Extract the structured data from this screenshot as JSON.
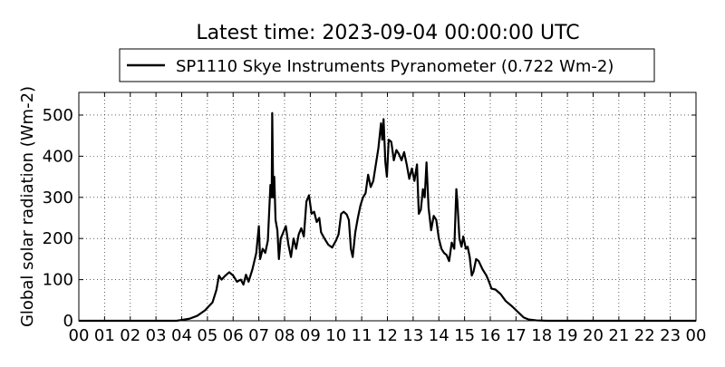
{
  "chart_data": {
    "type": "line",
    "title": "Latest time: 2023-09-04 00:00:00 UTC",
    "ylabel": "Global solar radiation (Wm-2)",
    "xlabel": "",
    "legend": {
      "placement": "top",
      "entries": [
        "SP1110 Skye Instruments Pyranometer (0.722 Wm-2)"
      ]
    },
    "xlim": [
      0,
      24
    ],
    "ylim": [
      0,
      555
    ],
    "grid": true,
    "x_ticks": [
      "00",
      "01",
      "02",
      "03",
      "04",
      "05",
      "06",
      "07",
      "08",
      "09",
      "10",
      "11",
      "12",
      "13",
      "14",
      "15",
      "16",
      "17",
      "18",
      "19",
      "20",
      "21",
      "22",
      "23",
      "00"
    ],
    "y_ticks": [
      0,
      100,
      200,
      300,
      400,
      500
    ],
    "series": [
      {
        "name": "SP1110 Skye Instruments Pyranometer (0.722 Wm-2)",
        "color": "#000000",
        "points": [
          [
            0,
            0
          ],
          [
            3.8,
            0
          ],
          [
            4.0,
            2
          ],
          [
            4.3,
            5
          ],
          [
            4.6,
            12
          ],
          [
            4.9,
            25
          ],
          [
            5.2,
            45
          ],
          [
            5.35,
            75
          ],
          [
            5.45,
            110
          ],
          [
            5.55,
            100
          ],
          [
            5.7,
            110
          ],
          [
            5.85,
            118
          ],
          [
            6.0,
            110
          ],
          [
            6.15,
            95
          ],
          [
            6.3,
            100
          ],
          [
            6.4,
            88
          ],
          [
            6.5,
            112
          ],
          [
            6.6,
            95
          ],
          [
            6.75,
            125
          ],
          [
            6.9,
            165
          ],
          [
            7.0,
            230
          ],
          [
            7.05,
            150
          ],
          [
            7.15,
            175
          ],
          [
            7.25,
            165
          ],
          [
            7.35,
            195
          ],
          [
            7.45,
            330
          ],
          [
            7.5,
            300
          ],
          [
            7.52,
            505
          ],
          [
            7.56,
            300
          ],
          [
            7.6,
            350
          ],
          [
            7.65,
            245
          ],
          [
            7.72,
            220
          ],
          [
            7.78,
            150
          ],
          [
            7.85,
            200
          ],
          [
            7.95,
            215
          ],
          [
            8.05,
            230
          ],
          [
            8.15,
            185
          ],
          [
            8.25,
            155
          ],
          [
            8.35,
            200
          ],
          [
            8.45,
            175
          ],
          [
            8.55,
            210
          ],
          [
            8.65,
            225
          ],
          [
            8.75,
            205
          ],
          [
            8.85,
            290
          ],
          [
            8.95,
            305
          ],
          [
            9.05,
            260
          ],
          [
            9.15,
            265
          ],
          [
            9.25,
            240
          ],
          [
            9.35,
            250
          ],
          [
            9.42,
            215
          ],
          [
            9.55,
            200
          ],
          [
            9.7,
            185
          ],
          [
            9.85,
            178
          ],
          [
            10.0,
            195
          ],
          [
            10.1,
            210
          ],
          [
            10.2,
            260
          ],
          [
            10.3,
            265
          ],
          [
            10.42,
            258
          ],
          [
            10.5,
            245
          ],
          [
            10.58,
            175
          ],
          [
            10.65,
            155
          ],
          [
            10.75,
            215
          ],
          [
            10.85,
            250
          ],
          [
            10.95,
            280
          ],
          [
            11.05,
            300
          ],
          [
            11.15,
            310
          ],
          [
            11.25,
            355
          ],
          [
            11.35,
            325
          ],
          [
            11.45,
            340
          ],
          [
            11.55,
            380
          ],
          [
            11.65,
            420
          ],
          [
            11.75,
            480
          ],
          [
            11.8,
            440
          ],
          [
            11.85,
            490
          ],
          [
            11.92,
            385
          ],
          [
            11.98,
            350
          ],
          [
            12.05,
            440
          ],
          [
            12.15,
            435
          ],
          [
            12.25,
            390
          ],
          [
            12.35,
            415
          ],
          [
            12.45,
            405
          ],
          [
            12.55,
            390
          ],
          [
            12.65,
            410
          ],
          [
            12.75,
            380
          ],
          [
            12.85,
            345
          ],
          [
            12.95,
            370
          ],
          [
            13.05,
            340
          ],
          [
            13.15,
            380
          ],
          [
            13.22,
            260
          ],
          [
            13.3,
            270
          ],
          [
            13.38,
            320
          ],
          [
            13.45,
            300
          ],
          [
            13.52,
            385
          ],
          [
            13.6,
            275
          ],
          [
            13.7,
            220
          ],
          [
            13.8,
            255
          ],
          [
            13.9,
            245
          ],
          [
            14.0,
            200
          ],
          [
            14.1,
            175
          ],
          [
            14.2,
            165
          ],
          [
            14.3,
            160
          ],
          [
            14.4,
            145
          ],
          [
            14.5,
            190
          ],
          [
            14.6,
            175
          ],
          [
            14.68,
            320
          ],
          [
            14.72,
            290
          ],
          [
            14.8,
            200
          ],
          [
            14.88,
            180
          ],
          [
            14.95,
            205
          ],
          [
            15.05,
            175
          ],
          [
            15.12,
            180
          ],
          [
            15.2,
            155
          ],
          [
            15.28,
            110
          ],
          [
            15.35,
            120
          ],
          [
            15.45,
            150
          ],
          [
            15.55,
            145
          ],
          [
            15.7,
            125
          ],
          [
            15.85,
            110
          ],
          [
            15.95,
            95
          ],
          [
            16.05,
            78
          ],
          [
            16.2,
            76
          ],
          [
            16.4,
            65
          ],
          [
            16.6,
            48
          ],
          [
            16.85,
            35
          ],
          [
            17.1,
            20
          ],
          [
            17.3,
            8
          ],
          [
            17.5,
            3
          ],
          [
            17.8,
            1
          ],
          [
            18.2,
            0
          ],
          [
            24,
            0
          ]
        ]
      }
    ]
  }
}
